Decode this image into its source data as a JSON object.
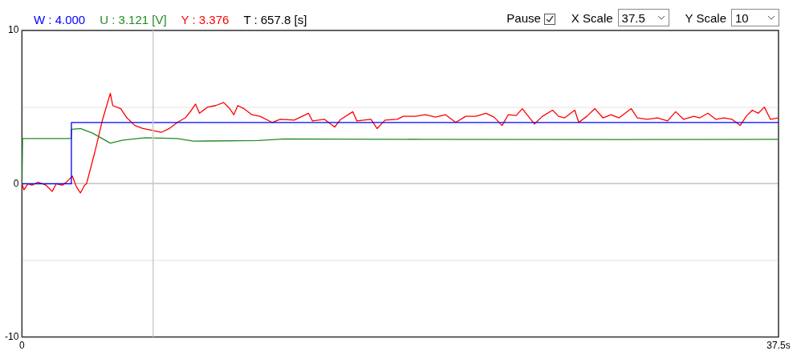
{
  "chart_data": {
    "type": "line",
    "xlim": [
      0,
      37.5
    ],
    "xticks": [
      0,
      {
        "value": 37.5,
        "label": "37.5s"
      }
    ],
    "ylim": [
      -10,
      10
    ],
    "yticks": [
      -10,
      {
        "value": -5,
        "label": null
      },
      0,
      {
        "value": 5,
        "label": null
      },
      10
    ],
    "grid": "y",
    "legend": "top left",
    "marker": "none",
    "line_style": "solid",
    "ref_lines": [
      {
        "axis": "x",
        "value": 6.5,
        "color": "#cccccc"
      }
    ],
    "annotations": [
      "T : 657.8 [s]",
      "Pause",
      "X Scale",
      "37.5",
      "Y Scale",
      "10"
    ],
    "series": [
      {
        "name": "W : 4.000",
        "color": "#0000ff",
        "x": [
          0,
          2.44,
          2.45,
          37.5
        ],
        "values": [
          0,
          0,
          4,
          4
        ]
      },
      {
        "name": "U : 3.121 [V]",
        "color": "#228b22",
        "x": [
          0,
          0.03,
          2.44,
          2.46,
          2.9,
          3.5,
          4.38,
          5.0,
          6.1,
          7.7,
          8.5,
          11.7,
          13,
          20,
          30,
          37.5
        ],
        "values": [
          0,
          2.95,
          2.95,
          3.55,
          3.6,
          3.3,
          2.65,
          2.85,
          3.0,
          2.95,
          2.78,
          2.82,
          2.92,
          2.9,
          2.88,
          2.9
        ]
      },
      {
        "name": "Y : 3.376",
        "color": "#ff0000",
        "x": [
          0,
          0.1,
          0.3,
          0.5,
          0.8,
          1.2,
          1.5,
          1.7,
          2.0,
          2.2,
          2.5,
          2.7,
          2.9,
          3.1,
          3.2,
          3.6,
          4.0,
          4.38,
          4.5,
          4.9,
          5.2,
          5.6,
          6.0,
          6.4,
          6.9,
          7.3,
          7.7,
          8.1,
          8.4,
          8.6,
          8.8,
          9.2,
          9.6,
          10.0,
          10.3,
          10.5,
          10.7,
          11.0,
          11.4,
          11.8,
          12.4,
          12.8,
          13.5,
          14.2,
          14.4,
          15.0,
          15.5,
          15.8,
          16.4,
          16.6,
          17.3,
          17.6,
          18.0,
          18.6,
          18.9,
          19.5,
          20.0,
          20.5,
          21.0,
          21.5,
          22.0,
          22.5,
          23.0,
          23.4,
          23.8,
          24.1,
          24.5,
          24.8,
          25.1,
          25.4,
          25.8,
          26.3,
          26.6,
          26.9,
          27.4,
          27.6,
          28.0,
          28.4,
          28.8,
          29.2,
          29.6,
          30.2,
          30.5,
          31.0,
          31.5,
          32.0,
          32.4,
          32.8,
          33.3,
          33.6,
          34.0,
          34.4,
          34.8,
          35.2,
          35.6,
          35.9,
          36.2,
          36.5,
          36.8,
          37.1,
          37.5
        ],
        "values": [
          0,
          -0.4,
          0,
          -0.1,
          0.1,
          -0.1,
          -0.5,
          0,
          -0.1,
          0.1,
          0.5,
          -0.2,
          -0.6,
          -0.1,
          0,
          2,
          4.2,
          5.9,
          5.1,
          4.9,
          4.3,
          3.8,
          3.6,
          3.5,
          3.35,
          3.6,
          4.0,
          4.3,
          4.8,
          5.2,
          4.6,
          5.0,
          5.1,
          5.3,
          4.9,
          4.5,
          5.1,
          4.9,
          4.5,
          4.4,
          4.0,
          4.2,
          4.15,
          4.6,
          4.1,
          4.2,
          3.7,
          4.2,
          4.7,
          4.1,
          4.2,
          3.6,
          4.15,
          4.2,
          4.4,
          4.4,
          4.5,
          4.35,
          4.5,
          4.0,
          4.4,
          4.4,
          4.6,
          4.35,
          3.8,
          4.5,
          4.45,
          4.9,
          4.4,
          3.9,
          4.4,
          4.8,
          4.4,
          4.3,
          4.8,
          4.0,
          4.4,
          4.9,
          4.3,
          4.5,
          4.3,
          4.9,
          4.3,
          4.2,
          4.3,
          4.1,
          4.7,
          4.2,
          4.4,
          4.3,
          4.6,
          4.2,
          4.3,
          4.2,
          3.8,
          4.4,
          4.8,
          4.6,
          5.0,
          4.2,
          4.3
        ]
      }
    ]
  }
}
